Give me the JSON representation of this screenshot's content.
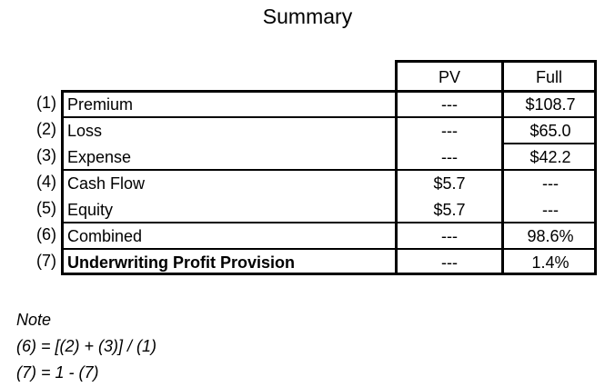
{
  "title": "Summary",
  "columns": {
    "pv": "PV",
    "full": "Full"
  },
  "rows": [
    {
      "num": "(1)",
      "label": "Premium",
      "pv": "---",
      "full": "$108.7"
    },
    {
      "num": "(2)",
      "label": "Loss",
      "pv": "---",
      "full": "$65.0"
    },
    {
      "num": "(3)",
      "label": "Expense",
      "pv": "---",
      "full": "$42.2"
    },
    {
      "num": "(4)",
      "label": "Cash Flow",
      "pv": "$5.7",
      "full": "---"
    },
    {
      "num": "(5)",
      "label": "Equity",
      "pv": "$5.7",
      "full": "---"
    },
    {
      "num": "(6)",
      "label": "Combined",
      "pv": "---",
      "full": "98.6%"
    },
    {
      "num": "(7)",
      "label": "Underwriting Profit Provision",
      "pv": "---",
      "full": "1.4%"
    }
  ],
  "notes": {
    "heading": "Note",
    "line1": "(6) = [(2) + (3)] / (1)",
    "line2": "(7) = 1 - (7)"
  }
}
